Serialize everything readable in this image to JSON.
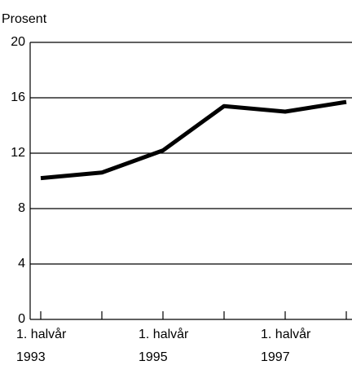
{
  "chart_data": {
    "type": "line",
    "ylabel": "Prosent",
    "categories": [
      "1. halvår\n1993",
      null,
      "1. halvår\n1995",
      null,
      "1. halvår\n1997",
      null
    ],
    "series": [
      {
        "color": "#000000",
        "values": [
          10.2,
          10.6,
          12.2,
          15.4,
          15.0,
          15.7
        ]
      }
    ],
    "ylim": [
      0,
      20
    ],
    "yticks": [
      0,
      4,
      8,
      12,
      16,
      20
    ],
    "grid": true
  }
}
